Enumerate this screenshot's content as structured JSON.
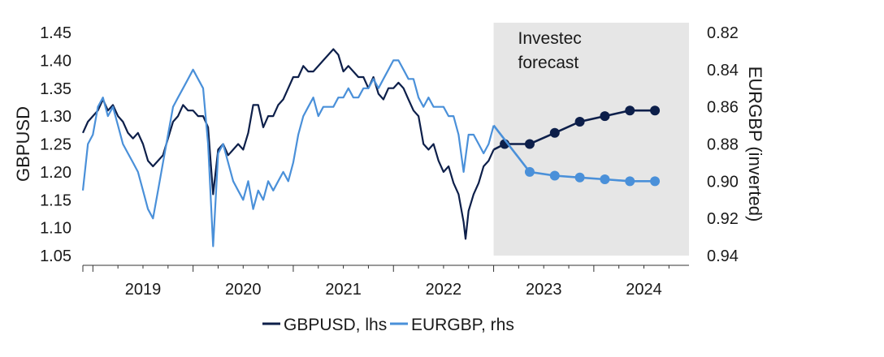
{
  "chart_data": {
    "type": "line",
    "title": "",
    "xlabel": "",
    "ylabel_left": "GBPUSD",
    "ylabel_right": "EURGBP (inverted)",
    "ylim_left": [
      1.05,
      1.45
    ],
    "ylim_right": [
      0.82,
      0.94
    ],
    "right_axis_inverted": true,
    "x_range": [
      2018.9,
      2024.95
    ],
    "left_ticks": [
      "1.05",
      "1.10",
      "1.15",
      "1.20",
      "1.25",
      "1.30",
      "1.35",
      "1.40",
      "1.45"
    ],
    "right_ticks": [
      "0.82",
      "0.84",
      "0.86",
      "0.88",
      "0.90",
      "0.92",
      "0.94"
    ],
    "year_labels": [
      "2019",
      "2020",
      "2021",
      "2022",
      "2023",
      "2024"
    ],
    "forecast_region": {
      "start": 2023.0,
      "end": 2024.95,
      "label_lines": [
        "Investec",
        "forecast"
      ],
      "color": "#e6e6e6"
    },
    "series": [
      {
        "name": "GBPUSD, lhs",
        "axis": "left",
        "color": "#0d1f4a",
        "history": [
          [
            2018.9,
            1.27
          ],
          [
            2018.95,
            1.29
          ],
          [
            2019.0,
            1.3
          ],
          [
            2019.05,
            1.31
          ],
          [
            2019.1,
            1.33
          ],
          [
            2019.15,
            1.31
          ],
          [
            2019.2,
            1.32
          ],
          [
            2019.25,
            1.3
          ],
          [
            2019.3,
            1.29
          ],
          [
            2019.35,
            1.27
          ],
          [
            2019.4,
            1.26
          ],
          [
            2019.45,
            1.27
          ],
          [
            2019.5,
            1.25
          ],
          [
            2019.55,
            1.22
          ],
          [
            2019.6,
            1.21
          ],
          [
            2019.65,
            1.22
          ],
          [
            2019.7,
            1.23
          ],
          [
            2019.75,
            1.26
          ],
          [
            2019.8,
            1.29
          ],
          [
            2019.85,
            1.3
          ],
          [
            2019.9,
            1.32
          ],
          [
            2019.95,
            1.31
          ],
          [
            2020.0,
            1.31
          ],
          [
            2020.05,
            1.3
          ],
          [
            2020.1,
            1.3
          ],
          [
            2020.15,
            1.28
          ],
          [
            2020.2,
            1.16
          ],
          [
            2020.25,
            1.24
          ],
          [
            2020.3,
            1.25
          ],
          [
            2020.35,
            1.23
          ],
          [
            2020.4,
            1.24
          ],
          [
            2020.45,
            1.25
          ],
          [
            2020.5,
            1.24
          ],
          [
            2020.55,
            1.27
          ],
          [
            2020.6,
            1.32
          ],
          [
            2020.65,
            1.32
          ],
          [
            2020.7,
            1.28
          ],
          [
            2020.75,
            1.3
          ],
          [
            2020.8,
            1.3
          ],
          [
            2020.85,
            1.32
          ],
          [
            2020.9,
            1.33
          ],
          [
            2020.95,
            1.35
          ],
          [
            2021.0,
            1.37
          ],
          [
            2021.05,
            1.37
          ],
          [
            2021.1,
            1.39
          ],
          [
            2021.15,
            1.38
          ],
          [
            2021.2,
            1.38
          ],
          [
            2021.25,
            1.39
          ],
          [
            2021.3,
            1.4
          ],
          [
            2021.35,
            1.41
          ],
          [
            2021.4,
            1.42
          ],
          [
            2021.45,
            1.41
          ],
          [
            2021.5,
            1.38
          ],
          [
            2021.55,
            1.39
          ],
          [
            2021.6,
            1.38
          ],
          [
            2021.65,
            1.37
          ],
          [
            2021.7,
            1.37
          ],
          [
            2021.75,
            1.35
          ],
          [
            2021.8,
            1.37
          ],
          [
            2021.85,
            1.34
          ],
          [
            2021.9,
            1.33
          ],
          [
            2021.95,
            1.35
          ],
          [
            2022.0,
            1.35
          ],
          [
            2022.05,
            1.36
          ],
          [
            2022.1,
            1.35
          ],
          [
            2022.15,
            1.33
          ],
          [
            2022.2,
            1.31
          ],
          [
            2022.25,
            1.3
          ],
          [
            2022.3,
            1.25
          ],
          [
            2022.35,
            1.24
          ],
          [
            2022.4,
            1.25
          ],
          [
            2022.45,
            1.22
          ],
          [
            2022.5,
            1.2
          ],
          [
            2022.55,
            1.21
          ],
          [
            2022.6,
            1.18
          ],
          [
            2022.65,
            1.16
          ],
          [
            2022.7,
            1.11
          ],
          [
            2022.72,
            1.08
          ],
          [
            2022.75,
            1.13
          ],
          [
            2022.8,
            1.16
          ],
          [
            2022.85,
            1.18
          ],
          [
            2022.9,
            1.21
          ],
          [
            2022.95,
            1.22
          ],
          [
            2023.0,
            1.24
          ]
        ],
        "forecast": [
          [
            2023.0,
            1.24
          ],
          [
            2023.11,
            1.25
          ],
          [
            2023.36,
            1.25
          ],
          [
            2023.61,
            1.27
          ],
          [
            2023.86,
            1.29
          ],
          [
            2024.11,
            1.3
          ],
          [
            2024.36,
            1.31
          ],
          [
            2024.61,
            1.31
          ]
        ]
      },
      {
        "name": "EURGBP, rhs",
        "axis": "right",
        "color": "#4a90d9",
        "history": [
          [
            2018.9,
            0.905
          ],
          [
            2018.95,
            0.88
          ],
          [
            2019.0,
            0.875
          ],
          [
            2019.05,
            0.86
          ],
          [
            2019.1,
            0.855
          ],
          [
            2019.15,
            0.865
          ],
          [
            2019.2,
            0.86
          ],
          [
            2019.25,
            0.87
          ],
          [
            2019.3,
            0.88
          ],
          [
            2019.35,
            0.885
          ],
          [
            2019.4,
            0.89
          ],
          [
            2019.45,
            0.895
          ],
          [
            2019.5,
            0.905
          ],
          [
            2019.55,
            0.915
          ],
          [
            2019.6,
            0.92
          ],
          [
            2019.65,
            0.905
          ],
          [
            2019.7,
            0.89
          ],
          [
            2019.75,
            0.875
          ],
          [
            2019.8,
            0.86
          ],
          [
            2019.85,
            0.855
          ],
          [
            2019.9,
            0.85
          ],
          [
            2019.95,
            0.845
          ],
          [
            2020.0,
            0.84
          ],
          [
            2020.05,
            0.845
          ],
          [
            2020.1,
            0.85
          ],
          [
            2020.15,
            0.88
          ],
          [
            2020.2,
            0.935
          ],
          [
            2020.25,
            0.885
          ],
          [
            2020.3,
            0.88
          ],
          [
            2020.35,
            0.89
          ],
          [
            2020.4,
            0.9
          ],
          [
            2020.45,
            0.905
          ],
          [
            2020.5,
            0.91
          ],
          [
            2020.55,
            0.9
          ],
          [
            2020.6,
            0.915
          ],
          [
            2020.65,
            0.905
          ],
          [
            2020.7,
            0.91
          ],
          [
            2020.75,
            0.9
          ],
          [
            2020.8,
            0.905
          ],
          [
            2020.85,
            0.9
          ],
          [
            2020.9,
            0.895
          ],
          [
            2020.95,
            0.9
          ],
          [
            2021.0,
            0.89
          ],
          [
            2021.05,
            0.875
          ],
          [
            2021.1,
            0.865
          ],
          [
            2021.15,
            0.86
          ],
          [
            2021.2,
            0.855
          ],
          [
            2021.25,
            0.865
          ],
          [
            2021.3,
            0.86
          ],
          [
            2021.35,
            0.86
          ],
          [
            2021.4,
            0.86
          ],
          [
            2021.45,
            0.855
          ],
          [
            2021.5,
            0.855
          ],
          [
            2021.55,
            0.85
          ],
          [
            2021.6,
            0.855
          ],
          [
            2021.65,
            0.855
          ],
          [
            2021.7,
            0.85
          ],
          [
            2021.75,
            0.85
          ],
          [
            2021.8,
            0.845
          ],
          [
            2021.85,
            0.85
          ],
          [
            2021.9,
            0.845
          ],
          [
            2021.95,
            0.84
          ],
          [
            2022.0,
            0.835
          ],
          [
            2022.05,
            0.835
          ],
          [
            2022.1,
            0.84
          ],
          [
            2022.15,
            0.845
          ],
          [
            2022.2,
            0.845
          ],
          [
            2022.25,
            0.855
          ],
          [
            2022.3,
            0.86
          ],
          [
            2022.35,
            0.855
          ],
          [
            2022.4,
            0.86
          ],
          [
            2022.45,
            0.86
          ],
          [
            2022.5,
            0.86
          ],
          [
            2022.55,
            0.865
          ],
          [
            2022.6,
            0.865
          ],
          [
            2022.65,
            0.875
          ],
          [
            2022.7,
            0.895
          ],
          [
            2022.75,
            0.875
          ],
          [
            2022.8,
            0.875
          ],
          [
            2022.85,
            0.88
          ],
          [
            2022.9,
            0.885
          ],
          [
            2022.95,
            0.88
          ],
          [
            2023.0,
            0.87
          ]
        ],
        "forecast": [
          [
            2023.0,
            0.87
          ],
          [
            2023.36,
            0.895
          ],
          [
            2023.61,
            0.897
          ],
          [
            2023.86,
            0.898
          ],
          [
            2024.11,
            0.899
          ],
          [
            2024.36,
            0.9
          ],
          [
            2024.61,
            0.9
          ]
        ]
      }
    ],
    "legend": {
      "position": "bottom"
    }
  }
}
